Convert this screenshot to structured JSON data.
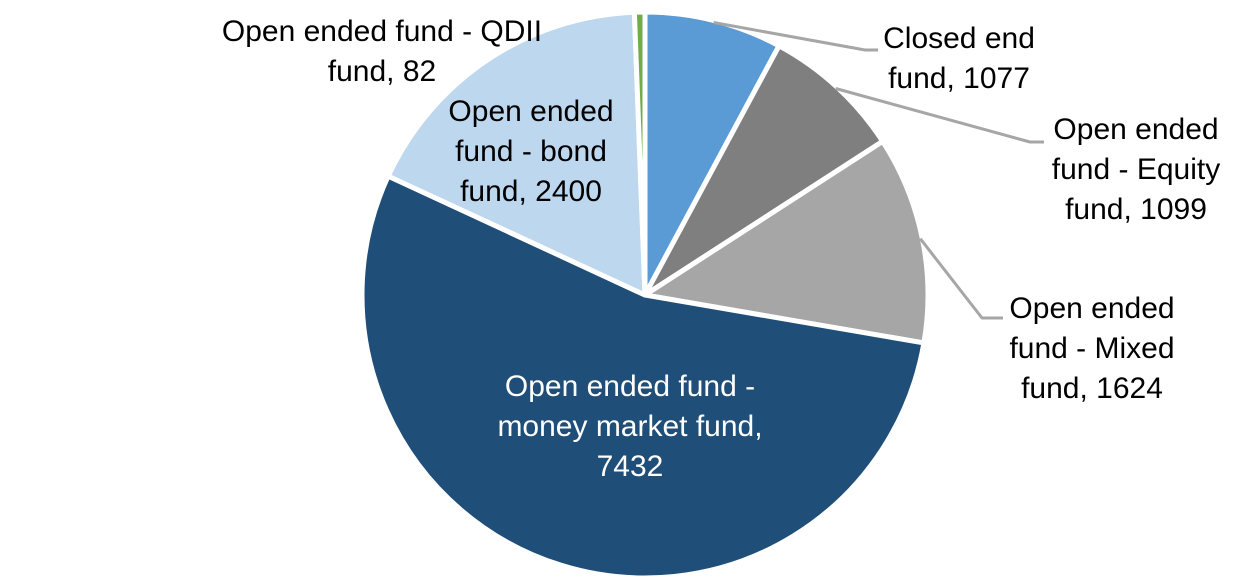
{
  "chart_data": {
    "type": "pie",
    "title": "",
    "legend": "none",
    "background": "#FFFFFF",
    "total": 13714,
    "start_angle_deg": 0,
    "direction": "clockwise",
    "leader_line_color": "#A6A6A6",
    "slice_border_color": "#FFFFFF",
    "slices": [
      {
        "id": "closed-end-fund",
        "label": "Closed end fund",
        "value": 1077,
        "color": "#5B9BD5",
        "label_color": "#000000",
        "label_placement": "outside",
        "label_lines": [
          "Closed end",
          "fund, 1077"
        ]
      },
      {
        "id": "open-ended-equity-fund",
        "label": "Open ended fund - Equity fund",
        "value": 1099,
        "color": "#7F7F7F",
        "label_color": "#000000",
        "label_placement": "outside",
        "label_lines": [
          "Open ended",
          "fund - Equity",
          "fund, 1099"
        ]
      },
      {
        "id": "open-ended-mixed-fund",
        "label": "Open ended fund - Mixed fund",
        "value": 1624,
        "color": "#A6A6A6",
        "label_color": "#000000",
        "label_placement": "outside",
        "label_lines": [
          "Open ended",
          "fund - Mixed",
          "fund, 1624"
        ]
      },
      {
        "id": "open-ended-money-market-fund",
        "label": "Open ended fund - money market fund",
        "value": 7432,
        "color": "#1F4E79",
        "label_color": "#FFFFFF",
        "label_placement": "inside",
        "label_lines": [
          "Open ended fund -",
          "money market fund,",
          "7432"
        ]
      },
      {
        "id": "open-ended-bond-fund",
        "label": "Open ended fund - bond fund",
        "value": 2400,
        "color": "#BDD7EE",
        "label_color": "#000000",
        "label_placement": "inside",
        "label_lines": [
          "Open ended",
          "fund - bond",
          "fund, 2400"
        ]
      },
      {
        "id": "open-ended-qdii-fund",
        "label": "Open ended fund - QDII fund",
        "value": 82,
        "color": "#70AD47",
        "label_color": "#000000",
        "label_placement": "outside",
        "label_lines": [
          "Open ended fund - QDII",
          "fund, 82"
        ]
      }
    ]
  }
}
